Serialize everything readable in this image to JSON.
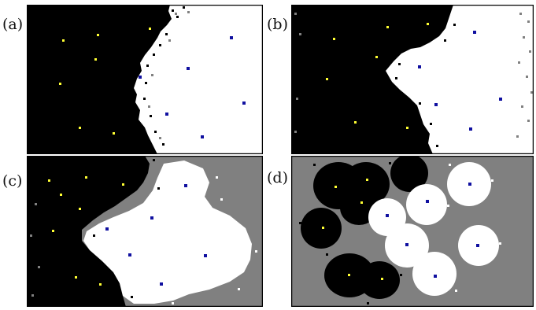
{
  "labels": {
    "a": "(a)",
    "b": "(b)",
    "c": "(c)",
    "d": "(d)"
  },
  "colors": {
    "black_region": "#000000",
    "white_region": "#ffffff",
    "gray_background": "#808080",
    "yellow_marker": "#ffff33",
    "blue_marker": "#1010a0",
    "frame": "#000000"
  }
}
